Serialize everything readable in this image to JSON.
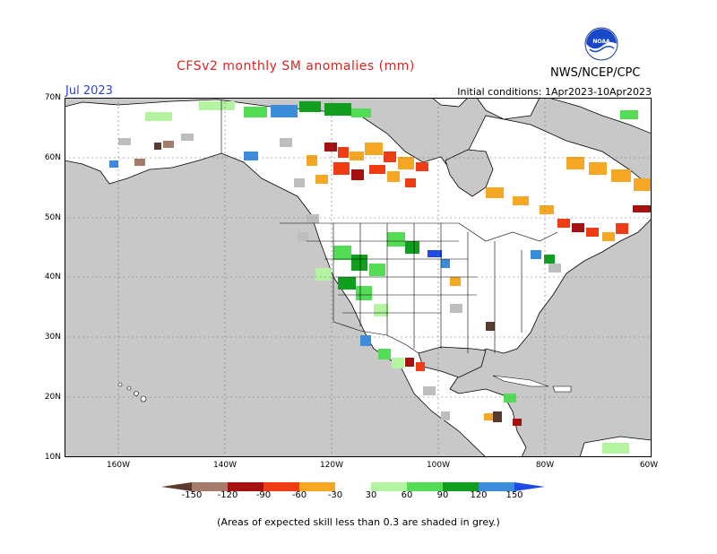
{
  "title": "CFSv2 monthly SM anomalies (mm)",
  "month": "Jul 2023",
  "initial_conditions": "Initial conditions: 1Apr2023-10Apr2023",
  "agency": "NWS/NCEP/CPC",
  "logo_text": "NOAA",
  "note": "(Areas of expected skill less than 0.3 are shaded in grey.)",
  "latitude_labels": [
    "70N",
    "60N",
    "50N",
    "40N",
    "30N",
    "20N",
    "10N"
  ],
  "longitude_labels": [
    "160W",
    "140W",
    "120W",
    "100W",
    "80W",
    "60W"
  ],
  "colorbar": {
    "labels": [
      "-150",
      "-120",
      "-90",
      "-60",
      "-30",
      "30",
      "60",
      "90",
      "120",
      "150"
    ],
    "colors": [
      "#5a3a2e",
      "#a57b6b",
      "#a51010",
      "#f03c14",
      "#f5a623",
      "#ffffff",
      "#b4f4a0",
      "#55dc55",
      "#0f9e1e",
      "#3c8cdc",
      "#1e4be6"
    ]
  },
  "colors": {
    "grey_no_skill": "#bebebe",
    "ocean": "#c8c8c8",
    "land": "#ffffff",
    "title": "#e0231e",
    "month": "#2b3fd6"
  }
}
